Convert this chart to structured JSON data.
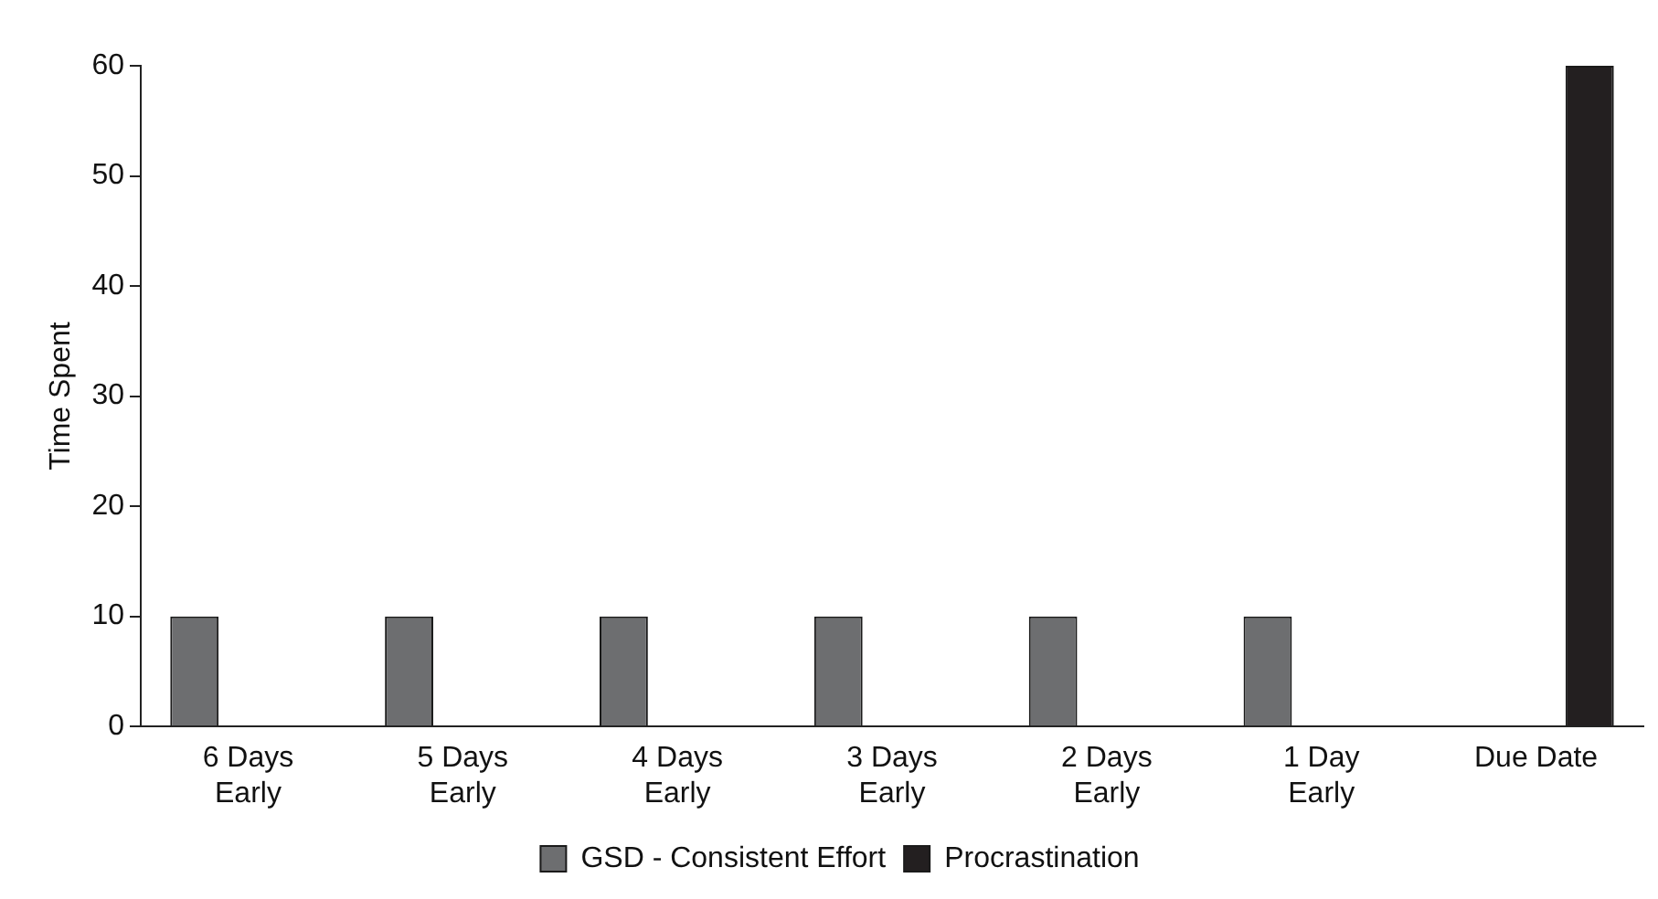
{
  "chart_data": {
    "type": "bar",
    "ylabel": "Time Spent",
    "categories": [
      "6 Days Early",
      "5 Days Early",
      "4 Days Early",
      "3 Days Early",
      "2 Days Early",
      "1 Day Early",
      "Due Date"
    ],
    "series": [
      {
        "name": "GSD - Consistent Effort",
        "color": "#6d6e70",
        "values": [
          10,
          10,
          10,
          10,
          10,
          10,
          null
        ]
      },
      {
        "name": "Procrastination",
        "color": "#231f20",
        "values": [
          null,
          null,
          null,
          null,
          null,
          null,
          60
        ]
      }
    ],
    "ylim": [
      0,
      60
    ],
    "yticks": [
      0,
      10,
      20,
      30,
      40,
      50,
      60
    ],
    "grid": false,
    "legend": "bottom"
  }
}
